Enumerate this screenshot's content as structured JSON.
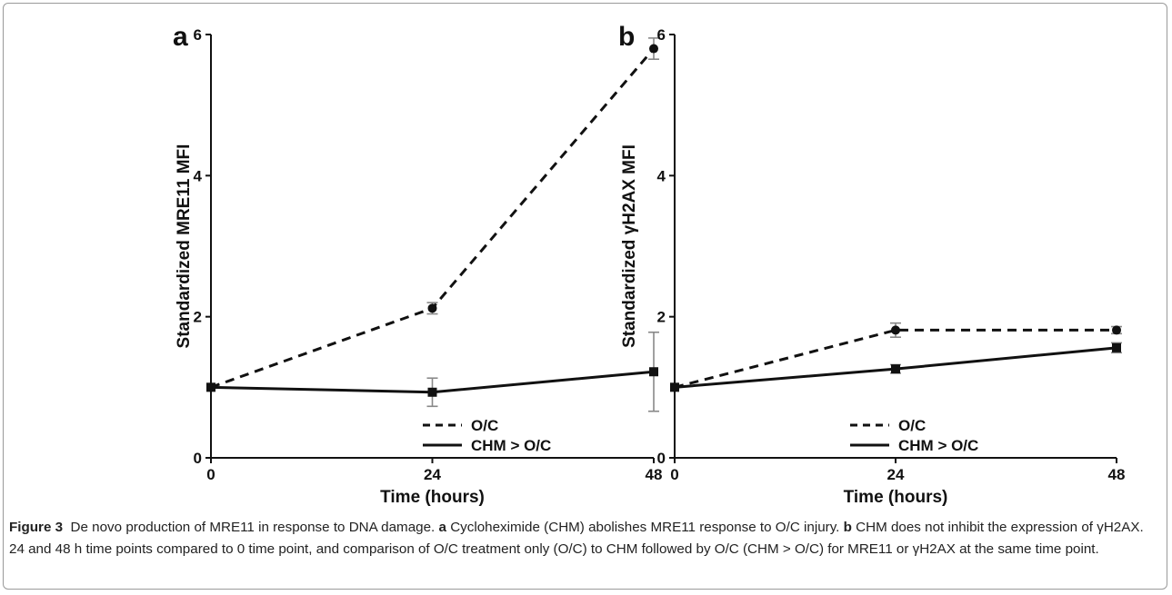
{
  "chart_data": [
    {
      "type": "line",
      "panel_label": "a",
      "ylabel": "Standardized MRE11 MFI",
      "xlabel": "Time (hours)",
      "x": [
        0,
        24,
        48
      ],
      "ylim": [
        0,
        6
      ],
      "yticks": [
        0,
        2,
        4,
        6
      ],
      "xticks": [
        0,
        24,
        48
      ],
      "legend_position": "bottom-right",
      "series": [
        {
          "name": "O/C",
          "style": "dashed",
          "marker": "circle",
          "values": [
            1.0,
            2.12,
            5.8
          ],
          "error": [
            0.0,
            0.08,
            0.15
          ]
        },
        {
          "name": "CHM > O/C",
          "style": "solid",
          "marker": "square",
          "values": [
            1.0,
            0.93,
            1.22
          ],
          "error": [
            0.0,
            0.2,
            0.56
          ]
        }
      ]
    },
    {
      "type": "line",
      "panel_label": "b",
      "ylabel": "Standardized γH2AX MFI",
      "xlabel": "Time (hours)",
      "x": [
        0,
        24,
        48
      ],
      "ylim": [
        0,
        6
      ],
      "yticks": [
        0,
        2,
        4,
        6
      ],
      "xticks": [
        0,
        24,
        48
      ],
      "legend_position": "bottom-right",
      "series": [
        {
          "name": "O/C",
          "style": "dashed",
          "marker": "circle",
          "values": [
            1.0,
            1.81,
            1.81
          ],
          "error": [
            0.0,
            0.1,
            0.05
          ]
        },
        {
          "name": "CHM > O/C",
          "style": "solid",
          "marker": "square",
          "values": [
            1.0,
            1.26,
            1.56
          ],
          "error": [
            0.0,
            0.06,
            0.07
          ]
        }
      ]
    }
  ],
  "caption": {
    "figure_label": "Figure 3",
    "title": "De novo production of MRE11 in response to DNA damage.",
    "a_label": "a",
    "a_text": "Cycloheximide (CHM) abolishes MRE11 response to O/C injury.",
    "b_label": "b",
    "b_text": "CHM does not inhibit the expression of γH2AX. 24 and 48 h time points compared to 0 time point, and comparison of O/C treatment only (O/C) to CHM followed by O/C (CHM > O/C) for MRE11 or γH2AX at the same time point."
  }
}
